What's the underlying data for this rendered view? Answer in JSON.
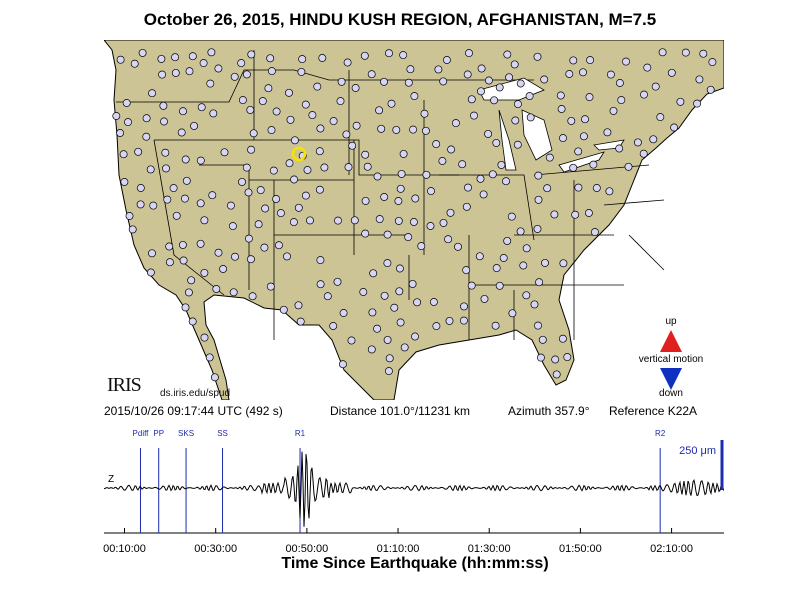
{
  "title": "October 26, 2015, HINDU KUSH REGION, AFGHANISTAN, M=7.5",
  "map": {
    "land_color": "#cdc495",
    "water_color": "#ffffff",
    "station_fill": "#d6d6f4",
    "reference_station_color": "#f5e300",
    "reference_station_label": "K22A"
  },
  "logo": {
    "text": "IRIS",
    "url": "ds.iris.edu/spud"
  },
  "legend": {
    "up": "up",
    "label": "vertical motion",
    "down": "down",
    "up_color": "#e02020",
    "down_color": "#1030c0"
  },
  "info": {
    "datetime": "2015/10/26 09:17:44 UTC (492 s)",
    "distance": "Distance 101.0°/11231 km",
    "azimuth": "Azimuth 357.9°",
    "reference": "Reference K22A"
  },
  "seismogram": {
    "channel": "Z",
    "scale_label": "250 μm",
    "phase_color": "#1c2bb0",
    "phases": [
      {
        "name": "Pdiff",
        "t_min": 13.5
      },
      {
        "name": "PP",
        "t_min": 17.5
      },
      {
        "name": "SKS",
        "t_min": 23.5
      },
      {
        "name": "SS",
        "t_min": 31.5
      },
      {
        "name": "R1",
        "t_min": 48.5
      },
      {
        "name": "R2",
        "t_min": 127.5
      }
    ],
    "x_ticks": [
      "00:10:00",
      "00:30:00",
      "00:50:00",
      "01:10:00",
      "01:30:00",
      "01:50:00",
      "02:10:00"
    ],
    "x_tick_minutes": [
      10,
      30,
      50,
      70,
      90,
      110,
      130
    ],
    "x_range_min": [
      5.5,
      141.5
    ],
    "x_axis_title": "Time Since Earthquake (hh:mm:ss)"
  }
}
